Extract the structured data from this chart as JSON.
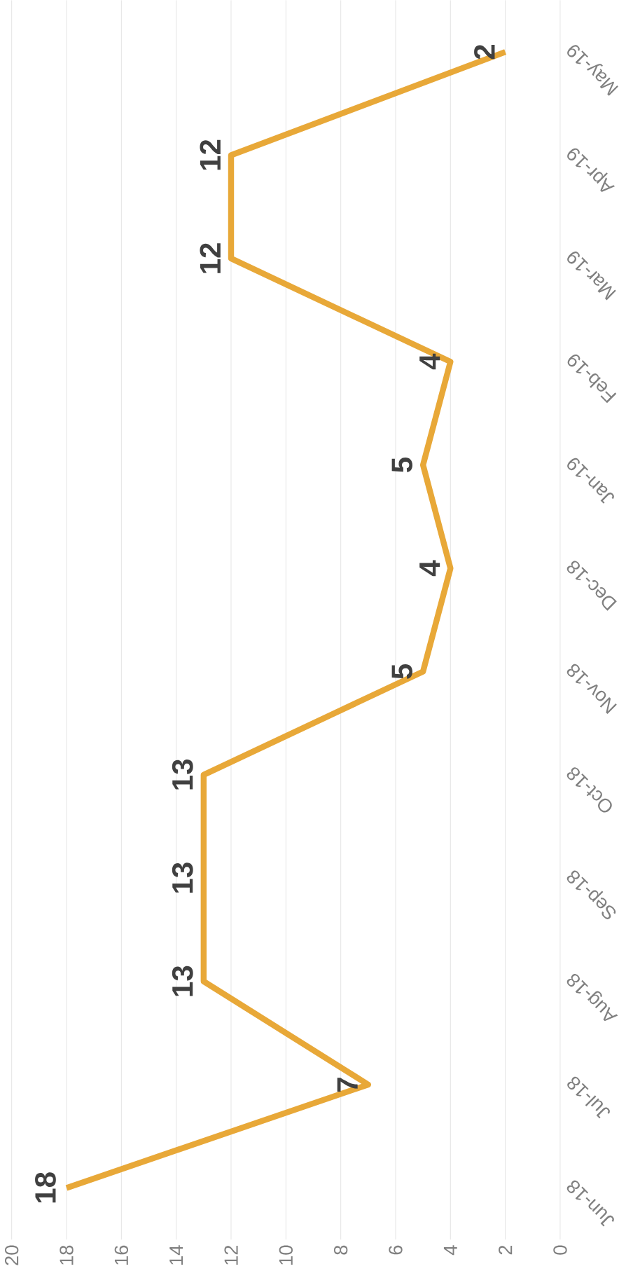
{
  "chart_data": {
    "type": "line",
    "orientation": "horizontal",
    "categories": [
      "May-19",
      "Apr-19",
      "Mar-19",
      "Feb-19",
      "Jan-19",
      "Dec-18",
      "Nov-18",
      "Oct-18",
      "Sep-18",
      "Aug-18",
      "Jul-18",
      "Jun-18"
    ],
    "values": [
      2,
      12,
      12,
      4,
      5,
      4,
      5,
      13,
      13,
      13,
      7,
      18
    ],
    "color": "#e8a838",
    "xlim": [
      20,
      0
    ],
    "xticks": [
      0,
      2,
      4,
      6,
      8,
      10,
      12,
      14,
      16,
      18,
      20
    ],
    "grid": "x",
    "data_labels": true,
    "marker": "none",
    "line_style": "solid"
  }
}
